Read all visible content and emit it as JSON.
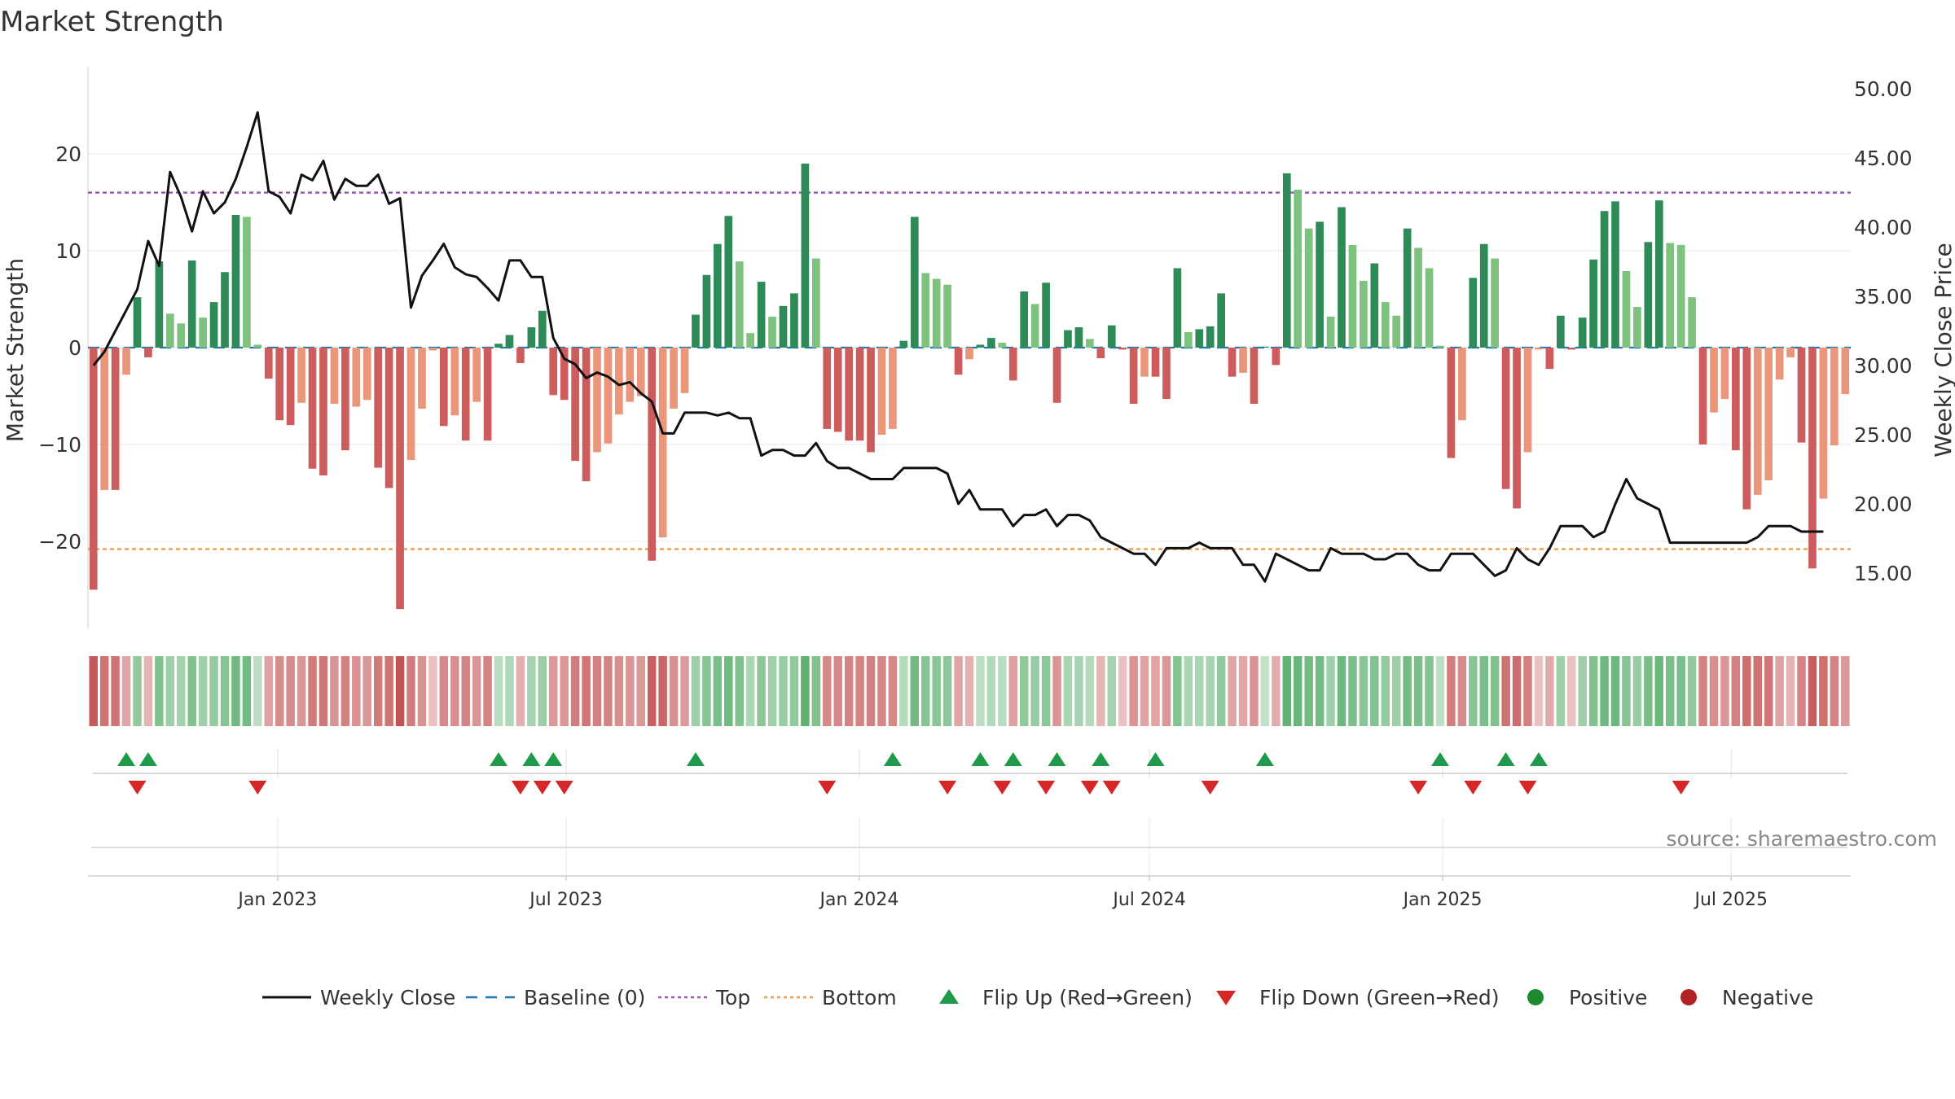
{
  "chart_data": {
    "type": "bar",
    "title": "Market Strength",
    "ylabel_left": "Market Strength",
    "ylabel_right": "Weekly Close Price",
    "source": "source: sharemaestro.com",
    "x_start": "2022-09-04",
    "x_end": "2025-09-14",
    "left_ylim": [
      -29,
      29
    ],
    "left_yticks": [
      20,
      10,
      0,
      -10,
      -20
    ],
    "left_ytick_labels": [
      "20",
      "10",
      "0",
      "−10",
      "−20"
    ],
    "right_ylim": [
      11.0,
      51.6
    ],
    "right_yticks": [
      50,
      45,
      40,
      35,
      30,
      25,
      20,
      15
    ],
    "right_ytick_labels": [
      "50.00",
      "45.00",
      "40.00",
      "35.00",
      "30.00",
      "25.00",
      "20.00",
      "15.00"
    ],
    "x_ticks": [
      {
        "date": "2023-01-01",
        "label": "Jan 2023"
      },
      {
        "date": "2023-07-01",
        "label": "Jul 2023"
      },
      {
        "date": "2024-01-01",
        "label": "Jan 2024"
      },
      {
        "date": "2024-07-01",
        "label": "Jul 2024"
      },
      {
        "date": "2025-01-01",
        "label": "Jan 2025"
      },
      {
        "date": "2025-07-01",
        "label": "Jul 2025"
      }
    ],
    "top_level": 16.0,
    "bottom_level": -20.8,
    "strength": [
      -25,
      -14.7,
      -14.7,
      -2.8,
      5.2,
      -1,
      8.9,
      3.5,
      2.5,
      9,
      3.1,
      4.7,
      7.8,
      13.7,
      13.5,
      0.3,
      -3.2,
      -7.5,
      -8,
      -5.7,
      -12.5,
      -13.2,
      -5.8,
      -10.6,
      -6.1,
      -5.4,
      -12.4,
      -14.5,
      -27,
      -11.6,
      -6.3,
      -0.3,
      -8.1,
      -7,
      -9.6,
      -5.6,
      -9.6,
      0.4,
      1.3,
      -1.6,
      2.1,
      3.8,
      -4.9,
      -5.4,
      -11.7,
      -13.8,
      -10.8,
      -9.9,
      -6.9,
      -5.6,
      -5,
      -22,
      -19.6,
      -6.3,
      -4.7,
      3.4,
      7.5,
      10.7,
      13.6,
      8.9,
      1.5,
      6.8,
      3.2,
      4.3,
      5.6,
      19,
      9.2,
      -8.4,
      -8.7,
      -9.6,
      -9.6,
      -10.8,
      -9,
      -8.4,
      0.7,
      13.5,
      7.7,
      7.1,
      6.5,
      -2.8,
      -1.2,
      0.3,
      1,
      0.5,
      -3.4,
      5.8,
      4.5,
      6.7,
      -5.7,
      1.8,
      2.1,
      0.9,
      -1.1,
      2.3,
      -0.2,
      -5.8,
      -3,
      -3,
      -5.3,
      8.2,
      1.6,
      1.9,
      2.2,
      5.6,
      -3,
      -2.6,
      -5.8,
      0.1,
      -1.8,
      18,
      16.3,
      12.3,
      13,
      3.2,
      14.5,
      10.6,
      6.9,
      8.7,
      4.7,
      3.3,
      12.3,
      10.3,
      8.2,
      0.2,
      -11.4,
      -7.5,
      7.2,
      10.7,
      9.2,
      -14.6,
      -16.6,
      -10.8,
      -0.2,
      -2.2,
      3.3,
      -0.2,
      3.1,
      9.1,
      14.1,
      15.1,
      7.9,
      4.2,
      10.9,
      15.2,
      10.8,
      10.6,
      5.2,
      -10,
      -6.7,
      -5.3,
      -10.6,
      -16.7,
      -15.2,
      -13.7,
      -3.3,
      -1,
      -9.8,
      -22.8,
      -15.6,
      -10.1,
      -4.8
    ],
    "weekly_close": [
      30,
      31,
      32.5,
      34,
      35.5,
      39,
      37.2,
      44,
      42.2,
      39.7,
      42.6,
      41,
      41.8,
      43.5,
      45.8,
      48.3,
      42.6,
      42.2,
      41,
      43.8,
      43.4,
      44.8,
      42,
      43.5,
      43,
      43,
      43.8,
      41.7,
      42.1,
      34.2,
      36.5,
      37.6,
      38.8,
      37.1,
      36.6,
      36.4,
      35.6,
      34.7,
      37.6,
      37.6,
      36.4,
      36.4,
      32,
      30.5,
      30.1,
      29.1,
      29.5,
      29.2,
      28.6,
      28.8,
      28,
      27.4,
      25.1,
      25.1,
      26.6,
      26.6,
      26.6,
      26.4,
      26.6,
      26.2,
      26.2,
      23.5,
      23.9,
      23.9,
      23.5,
      23.5,
      24.4,
      23.1,
      22.6,
      22.6,
      22.2,
      21.8,
      21.8,
      21.8,
      22.6,
      22.6,
      22.6,
      22.6,
      22.2,
      20,
      21,
      19.6,
      19.6,
      19.6,
      18.4,
      19.2,
      19.2,
      19.6,
      18.4,
      19.2,
      19.2,
      18.8,
      17.6,
      17.2,
      16.8,
      16.4,
      16.4,
      15.6,
      16.8,
      16.8,
      16.8,
      17.2,
      16.8,
      16.8,
      16.8,
      15.6,
      15.6,
      14.4,
      16.4,
      16,
      15.6,
      15.2,
      15.2,
      16.8,
      16.4,
      16.4,
      16.4,
      16,
      16,
      16.4,
      16.4,
      15.6,
      15.2,
      15.2,
      16.4,
      16.4,
      16.4,
      15.6,
      14.8,
      15.2,
      16.8,
      16,
      15.6,
      16.8,
      18.4,
      18.4,
      18.4,
      17.6,
      18,
      20,
      21.8,
      20.4,
      20,
      19.6,
      17.2,
      17.2,
      17.2,
      17.2,
      17.2,
      17.2,
      17.2,
      17.2,
      17.6,
      18.4,
      18.4,
      18.4,
      18,
      18,
      18
    ],
    "flips_up": [
      3,
      5,
      37,
      40,
      42,
      55,
      73,
      81,
      84,
      88,
      92,
      97,
      107,
      123,
      129,
      132
    ],
    "flips_down": [
      4,
      15,
      39,
      41,
      43,
      67,
      78,
      83,
      87,
      91,
      93,
      102,
      121,
      126,
      131,
      145
    ],
    "legend": [
      {
        "label": "Weekly Close",
        "kind": "line",
        "color": "#111111"
      },
      {
        "label": "Baseline (0)",
        "kind": "dash",
        "color": "#1f77b4"
      },
      {
        "label": "Top",
        "kind": "dot",
        "color": "#9b59b6"
      },
      {
        "label": "Bottom",
        "kind": "dot",
        "color": "#f0a050"
      },
      {
        "label": "Flip Up (Red→Green)",
        "kind": "tri-up",
        "color": "#1e9a4a"
      },
      {
        "label": "Flip Down (Green→Red)",
        "kind": "tri-down",
        "color": "#d62728"
      },
      {
        "label": "Positive",
        "kind": "circle",
        "color": "#1e8a2e"
      },
      {
        "label": "Negative",
        "kind": "circle",
        "color": "#b22222"
      }
    ],
    "colors": {
      "pos_strong": "#2e8b57",
      "pos_weak": "#7fc17f",
      "neg_strong": "#cd5c5c",
      "neg_weak": "#e9967a",
      "top_line": "#9b59b6",
      "bottom_line": "#f0a050",
      "baseline": "#1f77b4",
      "close_line": "#111111"
    }
  }
}
